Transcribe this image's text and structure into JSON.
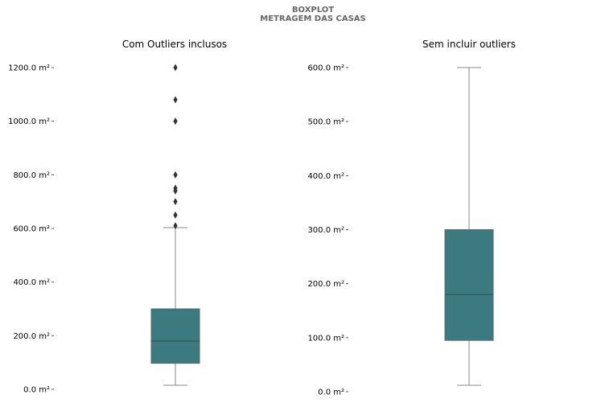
{
  "figure": {
    "suptitle_line1": "BOXPLOT",
    "suptitle_line2": "METRAGEM DAS CASAS",
    "box_color": "#3b7a7e",
    "median_color": "#2f4f4f",
    "whisker_color": "#888888",
    "outlier_color": "#333333"
  },
  "chart_data": [
    {
      "type": "box",
      "title": "Com Outliers inclusos",
      "unit": "m²",
      "ylim": [
        0,
        1200
      ],
      "yticks": [
        0,
        200,
        400,
        600,
        800,
        1000,
        1200
      ],
      "ytick_labels": [
        "0.0 m²",
        "200.0 m²",
        "400.0 m²",
        "600.0 m²",
        "800.0 m²",
        "1000.0 m²",
        "1200.0 m²"
      ],
      "box": {
        "whisker_low": 15,
        "q1": 97,
        "median": 180,
        "q3": 300,
        "whisker_high": 603
      },
      "outliers": [
        610,
        650,
        700,
        740,
        750,
        800,
        1000,
        1080,
        1200
      ]
    },
    {
      "type": "box",
      "title": "Sem incluir outliers",
      "unit": "m²",
      "ylim": [
        0,
        600
      ],
      "yticks": [
        0,
        100,
        200,
        300,
        400,
        500,
        600
      ],
      "ytick_labels": [
        "0.0 m²",
        "100.0 m²",
        "200.0 m²",
        "300.0 m²",
        "400.0 m²",
        "500.0 m²",
        "600.0 m²"
      ],
      "box": {
        "whisker_low": 12,
        "q1": 95,
        "median": 180,
        "q3": 300,
        "whisker_high": 600
      },
      "outliers": []
    }
  ]
}
